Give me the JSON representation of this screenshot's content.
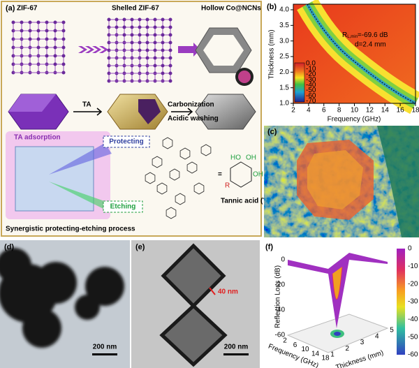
{
  "panel_a": {
    "label": "(a)",
    "stages": [
      "ZIF-67",
      "Shelled ZIF-67",
      "Hollow Co@NCNs"
    ],
    "step1": "TA",
    "step2": [
      "Carbonization",
      "Acidic washing"
    ],
    "adsorption": "TA adsorption",
    "protecting": "Protecting",
    "etching": "Etching",
    "process": "Synergistic protecting-etching process",
    "equals": "=",
    "ta_name": "Tannic acid (TA)",
    "ta_groups": [
      "HO",
      "OH",
      "OH",
      "R"
    ]
  },
  "panel_b": {
    "label": "(b)",
    "x_label": "Frequency (GHz)",
    "y_label": "Thickness (mm)",
    "x_ticks": [
      "2",
      "4",
      "6",
      "8",
      "10",
      "12",
      "14",
      "16",
      "18"
    ],
    "y_ticks": [
      "1.0",
      "1.5",
      "2.0",
      "2.5",
      "3.0",
      "3.5",
      "4.0"
    ],
    "colorbar_ticks": [
      "0.0",
      "-10",
      "-20",
      "-30",
      "-40",
      "-50",
      "-60",
      "-70"
    ],
    "annotation_symbol": "R",
    "annotation_subscript": "L,min",
    "annotation_value": "=-69.6 dB",
    "annotation_d": "d=2.4 mm"
  },
  "panel_c": {
    "label": "(c)"
  },
  "panel_d": {
    "label": "(d)",
    "scale_bar": "200 nm"
  },
  "panel_e": {
    "label": "(e)",
    "marker": "40 nm",
    "scale_bar": "200 nm"
  },
  "panel_f": {
    "label": "(f)",
    "z_label": "Reflection Loss (dB)",
    "z_ticks": [
      "0",
      "-20",
      "-40",
      "-60"
    ],
    "x_label": "Frequency (GHz)",
    "x_ticks": [
      "2",
      "6",
      "10",
      "14",
      "18"
    ],
    "y_label": "Thickness (mm)",
    "y_ticks": [
      "1",
      "2",
      "3",
      "4",
      "5"
    ],
    "colorbar_ticks": [
      "0",
      "-10",
      "-20",
      "-30",
      "-40",
      "-50",
      "-60"
    ]
  }
}
